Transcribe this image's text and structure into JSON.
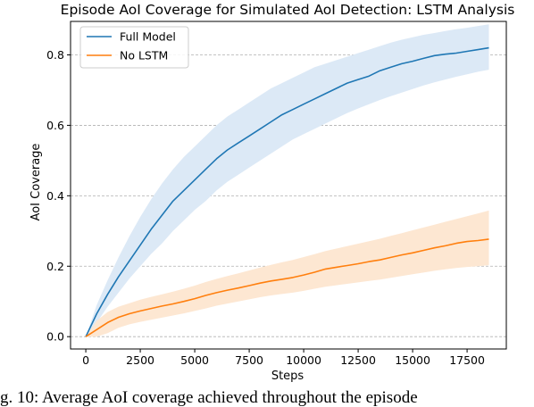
{
  "caption": "g. 10: Average AoI coverage achieved throughout the episode",
  "chart_data": {
    "type": "line",
    "title": "Episode AoI Coverage for Simulated AoI Detection: LSTM Analysis",
    "xlabel": "Steps",
    "ylabel": "AoI Coverage",
    "xlim": [
      -700,
      19300
    ],
    "ylim": [
      -0.035,
      0.895
    ],
    "xticks": [
      0,
      2500,
      5000,
      7500,
      10000,
      12500,
      15000,
      17500
    ],
    "yticks": [
      0.0,
      0.2,
      0.4,
      0.6,
      0.8
    ],
    "xtick_labels": [
      "0",
      "2500",
      "5000",
      "7500",
      "10000",
      "12500",
      "15000",
      "17500"
    ],
    "ytick_labels": [
      "0.0",
      "0.2",
      "0.4",
      "0.6",
      "0.8"
    ],
    "grid": "horizontal dashed",
    "legend_position": "top-left",
    "x": [
      0,
      500,
      1000,
      1500,
      2000,
      2500,
      3000,
      3500,
      4000,
      4500,
      5000,
      5500,
      6000,
      6500,
      7000,
      7500,
      8000,
      8500,
      9000,
      9500,
      10000,
      10500,
      11000,
      11500,
      12000,
      12500,
      13000,
      13500,
      14000,
      14500,
      15000,
      15500,
      16000,
      16500,
      17000,
      17500,
      18000,
      18500
    ],
    "series": [
      {
        "name": "Full Model",
        "color": "#1f77b4",
        "band_color": "#dce9f6",
        "values": [
          0.0,
          0.065,
          0.12,
          0.17,
          0.215,
          0.26,
          0.305,
          0.345,
          0.385,
          0.415,
          0.445,
          0.475,
          0.505,
          0.53,
          0.55,
          0.57,
          0.59,
          0.61,
          0.63,
          0.645,
          0.66,
          0.675,
          0.69,
          0.705,
          0.72,
          0.73,
          0.74,
          0.755,
          0.765,
          0.775,
          0.782,
          0.79,
          0.798,
          0.802,
          0.805,
          0.81,
          0.815,
          0.82
        ],
        "upper": [
          0.0,
          0.09,
          0.16,
          0.225,
          0.285,
          0.34,
          0.39,
          0.435,
          0.475,
          0.51,
          0.54,
          0.57,
          0.6,
          0.625,
          0.645,
          0.665,
          0.685,
          0.705,
          0.72,
          0.735,
          0.75,
          0.765,
          0.775,
          0.785,
          0.795,
          0.805,
          0.815,
          0.825,
          0.835,
          0.843,
          0.85,
          0.857,
          0.862,
          0.868,
          0.873,
          0.877,
          0.882,
          0.887
        ],
        "lower": [
          0.0,
          0.04,
          0.085,
          0.125,
          0.165,
          0.2,
          0.235,
          0.265,
          0.3,
          0.33,
          0.36,
          0.385,
          0.415,
          0.44,
          0.46,
          0.48,
          0.5,
          0.52,
          0.54,
          0.56,
          0.575,
          0.59,
          0.605,
          0.62,
          0.635,
          0.648,
          0.66,
          0.672,
          0.683,
          0.693,
          0.703,
          0.713,
          0.722,
          0.73,
          0.738,
          0.745,
          0.752,
          0.758
        ]
      },
      {
        "name": "No LSTM",
        "color": "#ff7f0e",
        "band_color": "#fde7d2",
        "values": [
          0.0,
          0.02,
          0.04,
          0.055,
          0.065,
          0.073,
          0.08,
          0.087,
          0.093,
          0.1,
          0.108,
          0.117,
          0.125,
          0.132,
          0.138,
          0.145,
          0.152,
          0.158,
          0.163,
          0.168,
          0.175,
          0.183,
          0.192,
          0.197,
          0.202,
          0.207,
          0.213,
          0.218,
          0.225,
          0.232,
          0.238,
          0.245,
          0.252,
          0.258,
          0.265,
          0.27,
          0.273,
          0.277
        ],
        "upper": [
          0.0,
          0.045,
          0.07,
          0.085,
          0.095,
          0.105,
          0.113,
          0.12,
          0.128,
          0.136,
          0.145,
          0.155,
          0.164,
          0.172,
          0.18,
          0.188,
          0.196,
          0.204,
          0.211,
          0.218,
          0.226,
          0.234,
          0.243,
          0.25,
          0.257,
          0.264,
          0.271,
          0.278,
          0.286,
          0.294,
          0.302,
          0.31,
          0.318,
          0.326,
          0.334,
          0.342,
          0.35,
          0.358
        ],
        "lower": [
          0.0,
          0.0,
          0.01,
          0.025,
          0.035,
          0.042,
          0.048,
          0.054,
          0.06,
          0.066,
          0.073,
          0.08,
          0.088,
          0.094,
          0.1,
          0.106,
          0.112,
          0.117,
          0.121,
          0.125,
          0.13,
          0.136,
          0.142,
          0.146,
          0.15,
          0.154,
          0.158,
          0.162,
          0.167,
          0.172,
          0.177,
          0.182,
          0.187,
          0.191,
          0.195,
          0.198,
          0.2,
          0.203
        ]
      }
    ]
  }
}
